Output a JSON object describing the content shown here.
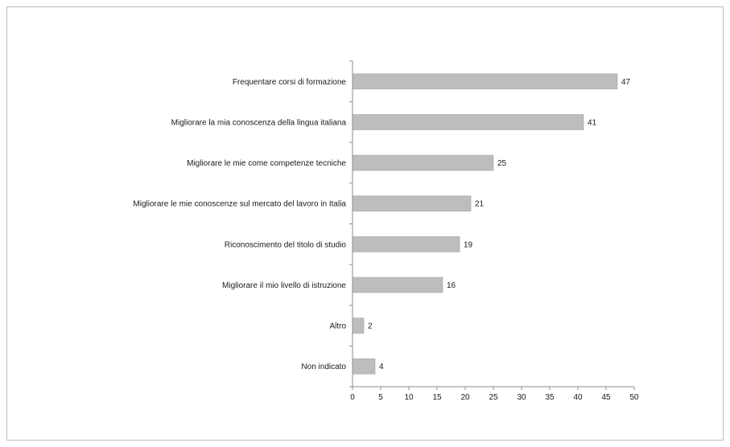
{
  "chart_data": {
    "type": "bar",
    "orientation": "horizontal",
    "categories": [
      "Frequentare corsi di formazione",
      "Migliorare la mia conoscenza della lingua italiana",
      "Migliorare le mie come competenze tecniche",
      "Migliorare le mie conoscenze sul mercato del lavoro in Italia",
      "Riconoscimento del titolo di studio",
      "Migliorare il mio livello di istruzione",
      "Altro",
      "Non indicato"
    ],
    "values": [
      47,
      41,
      25,
      21,
      19,
      16,
      2,
      4
    ],
    "data_labels": [
      "47",
      "41",
      "25",
      "21",
      "19",
      "16",
      "2",
      "4"
    ],
    "xlim": [
      0,
      50
    ],
    "x_ticks": [
      0,
      5,
      10,
      15,
      20,
      25,
      30,
      35,
      40,
      45,
      50
    ],
    "x_tick_labels": [
      "0",
      "5",
      "10",
      "15",
      "20",
      "25",
      "30",
      "35",
      "40",
      "45",
      "50"
    ],
    "grid": false,
    "legend": "none",
    "bar_color": "#bdbdbd",
    "bar_stroke": "#a6a6a6",
    "axis_color": "#8c8c8c"
  }
}
